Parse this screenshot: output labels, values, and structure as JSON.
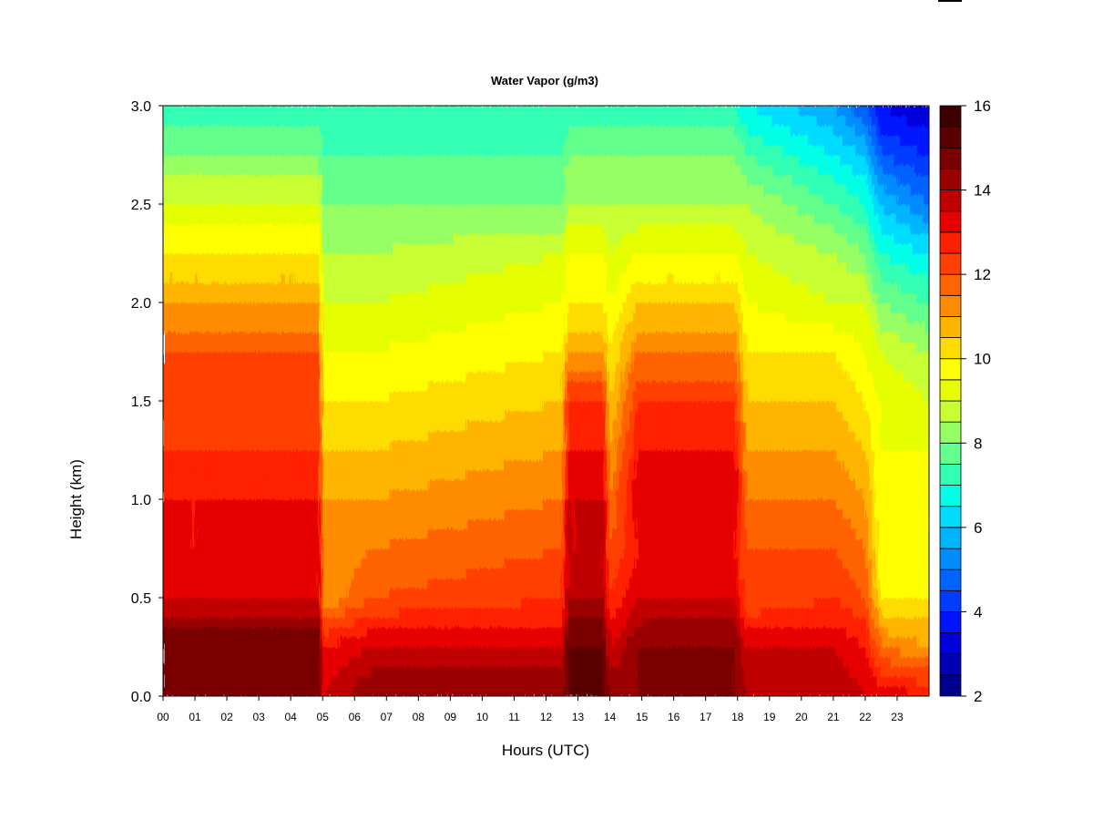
{
  "chart_data": {
    "type": "heatmap",
    "title": "Water Vapor (g/m3)",
    "xlabel": "Hours (UTC)",
    "ylabel": "Height (km)",
    "xlim": [
      0,
      24
    ],
    "ylim": [
      0,
      3
    ],
    "x_ticks": [
      "00",
      "01",
      "02",
      "03",
      "04",
      "05",
      "06",
      "07",
      "08",
      "09",
      "10",
      "11",
      "12",
      "13",
      "14",
      "15",
      "16",
      "17",
      "18",
      "19",
      "20",
      "21",
      "22",
      "23"
    ],
    "y_ticks": [
      "0.0",
      "0.5",
      "1.0",
      "1.5",
      "2.0",
      "2.5",
      "3.0"
    ],
    "colorbar": {
      "min": 2,
      "max": 16,
      "step": 0.5,
      "ticks": [
        "2",
        "4",
        "6",
        "8",
        "10",
        "12",
        "14",
        "16"
      ],
      "colors": [
        "#00008c",
        "#0000b4",
        "#0000dc",
        "#0014ff",
        "#003cff",
        "#0064ff",
        "#008cff",
        "#00b4ff",
        "#00dcff",
        "#00ffe6",
        "#32ffb4",
        "#64ff8c",
        "#96ff64",
        "#c8ff32",
        "#e6ff00",
        "#ffff00",
        "#ffdc00",
        "#ffb400",
        "#ff8c00",
        "#ff6400",
        "#ff4000",
        "#ff2000",
        "#e60000",
        "#c00000",
        "#9a0000",
        "#7a0000",
        "#5a0000",
        "#3c0000"
      ]
    },
    "heights_km": [
      0.0,
      0.25,
      0.5,
      0.75,
      1.0,
      1.25,
      1.5,
      1.75,
      2.0,
      2.25,
      2.5,
      2.75,
      3.0
    ],
    "hours": [
      0,
      4.9,
      5.0,
      6.5,
      12.5,
      12.7,
      13.8,
      14.0,
      14.9,
      17.9,
      18.3,
      21.0,
      22.0,
      22.5,
      23.9
    ],
    "values_gm3": [
      [
        14.5,
        15.0,
        13.5,
        13.0,
        13.0,
        12.5,
        12.0,
        12.0,
        11.0,
        10.0,
        9.0,
        8.0,
        7.0
      ],
      [
        14.5,
        15.0,
        13.5,
        13.0,
        13.0,
        12.5,
        12.0,
        12.0,
        11.0,
        10.0,
        9.0,
        8.0,
        7.0
      ],
      [
        13.5,
        13.0,
        11.0,
        11.0,
        11.0,
        10.5,
        10.0,
        9.5,
        9.0,
        8.5,
        8.0,
        7.5,
        7.0
      ],
      [
        14.5,
        13.5,
        12.0,
        11.5,
        11.0,
        10.5,
        10.0,
        9.5,
        9.0,
        8.5,
        8.0,
        7.5,
        7.0
      ],
      [
        14.5,
        13.5,
        12.5,
        12.0,
        11.5,
        11.0,
        10.5,
        10.0,
        9.5,
        9.0,
        8.0,
        7.5,
        7.0
      ],
      [
        15.0,
        15.0,
        14.0,
        13.5,
        13.5,
        13.0,
        12.5,
        11.0,
        10.0,
        9.5,
        8.5,
        8.0,
        7.0
      ],
      [
        15.0,
        15.0,
        14.0,
        13.5,
        13.5,
        13.0,
        12.5,
        11.0,
        10.0,
        9.5,
        8.5,
        8.0,
        7.0
      ],
      [
        14.5,
        13.5,
        12.5,
        12.0,
        11.5,
        11.0,
        10.5,
        10.0,
        9.5,
        9.0,
        8.5,
        8.0,
        7.0
      ],
      [
        14.5,
        14.5,
        13.5,
        13.0,
        13.5,
        13.0,
        12.5,
        11.5,
        10.5,
        9.5,
        8.5,
        8.0,
        7.0
      ],
      [
        14.5,
        14.5,
        13.5,
        13.0,
        13.5,
        13.0,
        12.5,
        11.5,
        10.5,
        9.5,
        8.5,
        8.0,
        7.0
      ],
      [
        14.0,
        13.5,
        12.0,
        12.0,
        11.5,
        11.0,
        10.5,
        10.0,
        9.5,
        9.0,
        8.5,
        7.5,
        6.5
      ],
      [
        14.0,
        13.5,
        12.5,
        12.0,
        11.5,
        11.0,
        10.5,
        10.0,
        9.0,
        8.5,
        7.5,
        6.5,
        5.5
      ],
      [
        13.5,
        13.0,
        12.0,
        11.5,
        11.0,
        10.5,
        10.0,
        9.5,
        9.0,
        8.0,
        7.0,
        6.0,
        4.5
      ],
      [
        13.5,
        11.5,
        10.0,
        9.5,
        9.5,
        9.5,
        9.5,
        9.0,
        8.0,
        7.0,
        6.0,
        4.5,
        3.5
      ],
      [
        13.0,
        11.0,
        10.0,
        9.5,
        9.5,
        9.5,
        9.0,
        8.5,
        7.5,
        6.5,
        5.0,
        4.0,
        3.0
      ]
    ]
  }
}
